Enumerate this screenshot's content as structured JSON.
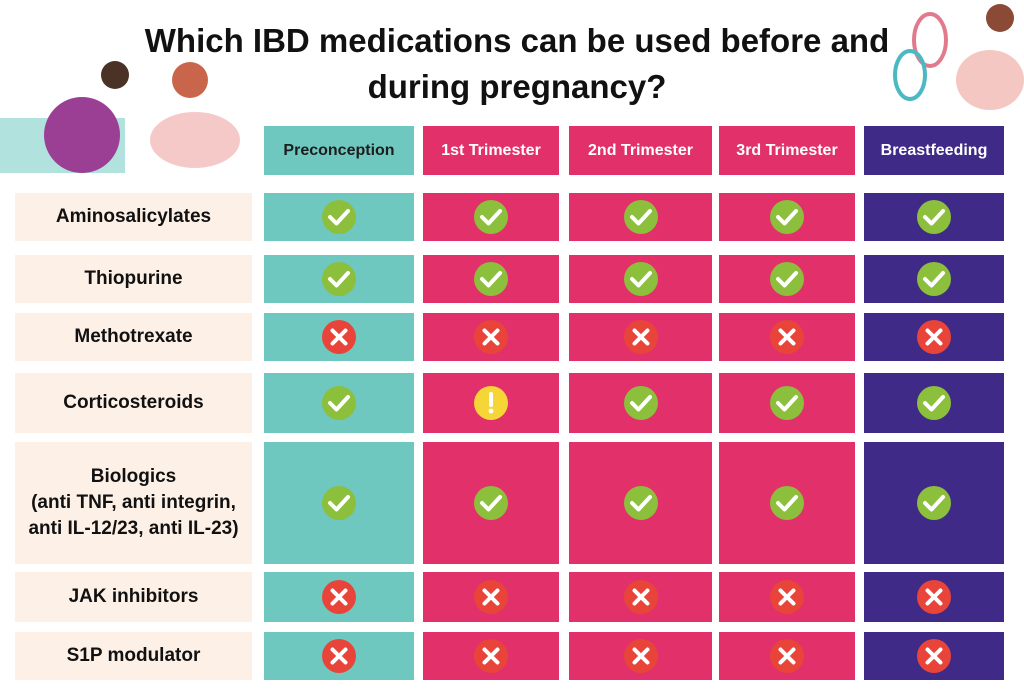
{
  "header": {
    "title": "Which IBD medications can be used before and during pregnancy?"
  },
  "table": {
    "columns": [
      {
        "label": "Preconception",
        "color": "#6fc8c0",
        "text_color": "#1d1d1d"
      },
      {
        "label": "1st Trimester",
        "color": "#e2306a",
        "text_color": "#ffffff"
      },
      {
        "label": "2nd Trimester",
        "color": "#e2306a",
        "text_color": "#ffffff"
      },
      {
        "label": "3rd Trimester",
        "color": "#e2306a",
        "text_color": "#ffffff"
      },
      {
        "label": "Breastfeeding",
        "color": "#3f2a87",
        "text_color": "#ffffff"
      }
    ],
    "rows": [
      {
        "label": "Aminosalicylates",
        "status": [
          "check",
          "check",
          "check",
          "check",
          "check"
        ]
      },
      {
        "label": "Thiopurine",
        "status": [
          "check",
          "check",
          "check",
          "check",
          "check"
        ]
      },
      {
        "label": "Methotrexate",
        "status": [
          "cross",
          "cross",
          "cross",
          "cross",
          "cross"
        ]
      },
      {
        "label": "Corticosteroids",
        "status": [
          "check",
          "caution",
          "check",
          "check",
          "check"
        ]
      },
      {
        "label": "Biologics",
        "sublabel": "(anti TNF, anti integrin, anti IL-12/23, anti IL-23)",
        "status": [
          "check",
          "check",
          "check",
          "check",
          "check"
        ]
      },
      {
        "label": "JAK inhibitors",
        "status": [
          "cross",
          "cross",
          "cross",
          "cross",
          "cross"
        ]
      },
      {
        "label": "S1P modulator",
        "status": [
          "cross",
          "cross",
          "cross",
          "cross",
          "cross"
        ]
      }
    ]
  }
}
